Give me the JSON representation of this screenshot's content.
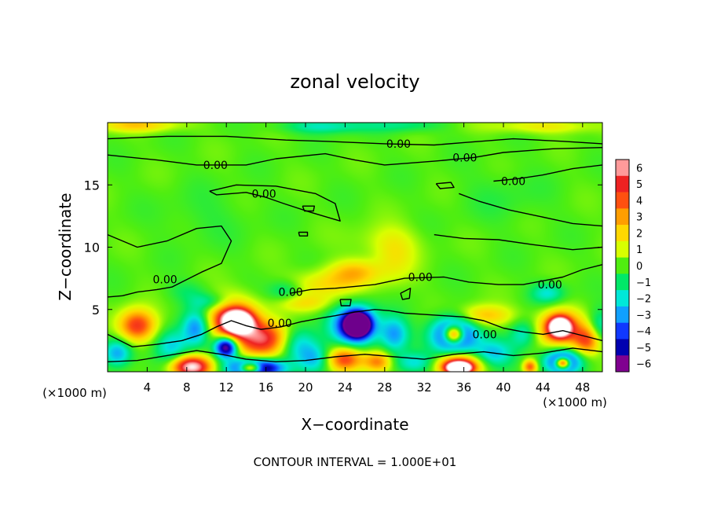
{
  "chart_data": {
    "type": "heatmap",
    "title": "zonal velocity",
    "xlabel": "X−coordinate",
    "ylabel": "Z−coordinate",
    "x_unit_left": "(×1000 m)",
    "x_unit_right": "(×1000 m)",
    "xlim": [
      0,
      50
    ],
    "ylim": [
      0,
      20
    ],
    "x_ticks": [
      4,
      8,
      12,
      16,
      20,
      24,
      28,
      32,
      36,
      40,
      44,
      48
    ],
    "y_ticks": [
      5,
      10,
      15
    ],
    "colorbar": {
      "min": -6,
      "max": 6,
      "tick_values": [
        6,
        5,
        4,
        3,
        2,
        1,
        0,
        -1,
        -2,
        -3,
        -4,
        -5,
        -6
      ],
      "tick_labels": [
        "6",
        "5",
        "4",
        "3",
        "2",
        "1",
        "0",
        "−1",
        "−2",
        "−3",
        "−4",
        "−5",
        "−6"
      ],
      "colors": [
        "#ff9a9a",
        "#ee2222",
        "#ff5010",
        "#ff9e00",
        "#ffd800",
        "#d8ff00",
        "#50ee10",
        "#00e868",
        "#00e8d8",
        "#10a0ff",
        "#1038ff",
        "#0000b0",
        "#800090"
      ]
    },
    "contour_interval_label": "CONTOUR INTERVAL = 1.000E+01",
    "contour_labels": [
      {
        "text": "0.00",
        "x": 29.4,
        "y": 18.3
      },
      {
        "text": "0.00",
        "x": 10.9,
        "y": 16.6
      },
      {
        "text": "0.00",
        "x": 36.1,
        "y": 17.2
      },
      {
        "text": "0.00",
        "x": 41.0,
        "y": 15.3
      },
      {
        "text": "0.00",
        "x": 15.8,
        "y": 14.3
      },
      {
        "text": "0.00",
        "x": 5.8,
        "y": 7.4
      },
      {
        "text": "0.00",
        "x": 18.5,
        "y": 6.4
      },
      {
        "text": "0.00",
        "x": 31.6,
        "y": 7.6
      },
      {
        "text": "0.00",
        "x": 44.7,
        "y": 7.0
      },
      {
        "text": "0.00",
        "x": 17.4,
        "y": 3.9
      },
      {
        "text": "0.00",
        "x": 38.1,
        "y": 3.0
      }
    ],
    "field_blobs": [
      {
        "x": 3,
        "y": 3.7,
        "sx": 1.3,
        "sy": 0.9,
        "v": 4.8
      },
      {
        "x": 1,
        "y": 1.5,
        "sx": 1.0,
        "sy": 0.8,
        "v": -3
      },
      {
        "x": 6.5,
        "y": 2.0,
        "sx": 1.2,
        "sy": 1.0,
        "v": -2.5
      },
      {
        "x": 8.5,
        "y": 0.4,
        "sx": 1.4,
        "sy": 0.6,
        "v": 7
      },
      {
        "x": 9,
        "y": 3.5,
        "sx": 1.0,
        "sy": 1.0,
        "v": -3.5
      },
      {
        "x": 12.5,
        "y": 4.2,
        "sx": 1.8,
        "sy": 1.2,
        "v": 5
      },
      {
        "x": 13.2,
        "y": 4.0,
        "sx": 1.0,
        "sy": 0.6,
        "v": 8
      },
      {
        "x": 16,
        "y": 2.6,
        "sx": 2.0,
        "sy": 1.0,
        "v": 5.5
      },
      {
        "x": 12,
        "y": 2.0,
        "sx": 0.8,
        "sy": 0.6,
        "v": -7
      },
      {
        "x": 15,
        "y": 0.3,
        "sx": 1.8,
        "sy": 0.5,
        "v": -8
      },
      {
        "x": 14.5,
        "y": 0.3,
        "sx": 0.8,
        "sy": 0.3,
        "v": 8
      },
      {
        "x": 19,
        "y": 2.3,
        "sx": 1.5,
        "sy": 1.0,
        "v": -3
      },
      {
        "x": 21,
        "y": 1.0,
        "sx": 1.2,
        "sy": 0.8,
        "v": -2.5
      },
      {
        "x": 25,
        "y": 3.7,
        "sx": 1.6,
        "sy": 1.1,
        "v": -5.5
      },
      {
        "x": 25.3,
        "y": 3.8,
        "sx": 0.8,
        "sy": 0.6,
        "v": -8
      },
      {
        "x": 24,
        "y": 1.0,
        "sx": 1.3,
        "sy": 0.7,
        "v": 4.5
      },
      {
        "x": 27.3,
        "y": 0.8,
        "sx": 1.0,
        "sy": 0.6,
        "v": 3.5
      },
      {
        "x": 29,
        "y": 3.0,
        "sx": 1.0,
        "sy": 1.0,
        "v": -3
      },
      {
        "x": 31,
        "y": 0.7,
        "sx": 1.5,
        "sy": 0.6,
        "v": -2
      },
      {
        "x": 35,
        "y": 3.0,
        "sx": 1.5,
        "sy": 1.0,
        "v": -6
      },
      {
        "x": 35,
        "y": 3.0,
        "sx": 0.7,
        "sy": 0.5,
        "v": 8
      },
      {
        "x": 35.5,
        "y": 0.5,
        "sx": 1.5,
        "sy": 0.6,
        "v": 6
      },
      {
        "x": 35.5,
        "y": 0.3,
        "sx": 0.8,
        "sy": 0.3,
        "v": 8
      },
      {
        "x": 38,
        "y": 4.5,
        "sx": 2.0,
        "sy": 0.6,
        "v": 2.5
      },
      {
        "x": 39,
        "y": 1.5,
        "sx": 1.5,
        "sy": 0.8,
        "v": -2.5
      },
      {
        "x": 42,
        "y": 3.0,
        "sx": 1.0,
        "sy": 0.8,
        "v": -2
      },
      {
        "x": 42.7,
        "y": 0.4,
        "sx": 0.5,
        "sy": 0.4,
        "v": 4
      },
      {
        "x": 45.7,
        "y": 3.5,
        "sx": 1.5,
        "sy": 1.0,
        "v": 5
      },
      {
        "x": 45.7,
        "y": 3.6,
        "sx": 0.7,
        "sy": 0.5,
        "v": 8
      },
      {
        "x": 46,
        "y": 0.8,
        "sx": 1.3,
        "sy": 0.7,
        "v": -5
      },
      {
        "x": 46,
        "y": 0.7,
        "sx": 0.5,
        "sy": 0.3,
        "v": 8
      },
      {
        "x": 48.5,
        "y": 2.5,
        "sx": 1.0,
        "sy": 0.8,
        "v": 4
      },
      {
        "x": 49.7,
        "y": 3.5,
        "sx": 0.8,
        "sy": 1.0,
        "v": -2
      },
      {
        "x": 44.5,
        "y": 6.3,
        "sx": 1.2,
        "sy": 0.6,
        "v": -2
      },
      {
        "x": 22,
        "y": 7.0,
        "sx": 2.5,
        "sy": 0.8,
        "v": 1.8
      },
      {
        "x": 25,
        "y": 8.0,
        "sx": 1.8,
        "sy": 0.7,
        "v": 2.2
      },
      {
        "x": 29,
        "y": 9.0,
        "sx": 1.5,
        "sy": 1.5,
        "v": 1.3
      },
      {
        "x": 20,
        "y": 5.5,
        "sx": 2.0,
        "sy": 0.5,
        "v": 1.5
      },
      {
        "x": 18,
        "y": 6.5,
        "sx": 1.2,
        "sy": 0.6,
        "v": -1.5
      },
      {
        "x": 10.5,
        "y": 5.6,
        "sx": 1.5,
        "sy": 0.5,
        "v": -1.8
      },
      {
        "x": 8,
        "y": 6.5,
        "sx": 1.5,
        "sy": 0.6,
        "v": -0.8
      },
      {
        "x": 28,
        "y": 10.5,
        "sx": 2.5,
        "sy": 1.0,
        "v": 0.8
      },
      {
        "x": 22,
        "y": 19.7,
        "sx": 3.0,
        "sy": 0.4,
        "v": -1.8
      },
      {
        "x": 30,
        "y": 19.8,
        "sx": 2.5,
        "sy": 0.4,
        "v": -1.2
      },
      {
        "x": 3,
        "y": 19.8,
        "sx": 3.0,
        "sy": 0.4,
        "v": 2.2
      },
      {
        "x": 44,
        "y": 19.7,
        "sx": 4.0,
        "sy": 0.4,
        "v": 1.5
      },
      {
        "x": 40,
        "y": 14.0,
        "sx": 3.0,
        "sy": 1.5,
        "v": -0.4
      },
      {
        "x": 10,
        "y": 12.5,
        "sx": 3.0,
        "sy": 1.5,
        "v": -0.4
      }
    ],
    "contour_lines": [
      [
        [
          0,
          18.7
        ],
        [
          6,
          18.9
        ],
        [
          12,
          18.9
        ],
        [
          18,
          18.6
        ],
        [
          22,
          18.5
        ],
        [
          28,
          18.3
        ],
        [
          33,
          18.2
        ],
        [
          36,
          18.4
        ],
        [
          41,
          18.7
        ],
        [
          46,
          18.5
        ],
        [
          50,
          18.3
        ]
      ],
      [
        [
          0,
          17.4
        ],
        [
          5,
          17.0
        ],
        [
          9,
          16.6
        ],
        [
          14,
          16.6
        ],
        [
          17,
          17.1
        ],
        [
          22,
          17.5
        ],
        [
          25,
          17.0
        ],
        [
          28,
          16.6
        ],
        [
          33,
          16.9
        ],
        [
          37,
          17.2
        ],
        [
          40,
          17.6
        ],
        [
          45,
          17.9
        ],
        [
          50,
          18.0
        ]
      ],
      [
        [
          39,
          15.3
        ],
        [
          41.5,
          15.5
        ],
        [
          44,
          15.8
        ],
        [
          47,
          16.3
        ],
        [
          50,
          16.6
        ]
      ],
      [
        [
          10.3,
          14.5
        ],
        [
          13,
          15.0
        ],
        [
          17,
          14.9
        ],
        [
          21,
          14.3
        ],
        [
          23,
          13.5
        ],
        [
          23.5,
          12.1
        ],
        [
          20.5,
          12.8
        ],
        [
          17.8,
          13.5
        ],
        [
          16,
          14.0
        ],
        [
          14,
          14.4
        ],
        [
          11,
          14.2
        ],
        [
          10.3,
          14.5
        ]
      ],
      [
        [
          0,
          11.0
        ],
        [
          3,
          10.0
        ],
        [
          6,
          10.5
        ],
        [
          9,
          11.5
        ],
        [
          11.5,
          11.7
        ],
        [
          12.5,
          10.5
        ],
        [
          11.5,
          8.7
        ],
        [
          9.5,
          8.0
        ],
        [
          7.5,
          7.2
        ],
        [
          6.5,
          6.8
        ],
        [
          5,
          6.6
        ],
        [
          3,
          6.4
        ],
        [
          1.5,
          6.1
        ],
        [
          0,
          6.0
        ]
      ],
      [
        [
          35.5,
          14.3
        ],
        [
          37.5,
          13.7
        ],
        [
          40.5,
          13.0
        ],
        [
          43.5,
          12.5
        ],
        [
          47,
          11.9
        ],
        [
          50,
          11.7
        ]
      ],
      [
        [
          33,
          11.0
        ],
        [
          36,
          10.7
        ],
        [
          39.5,
          10.6
        ],
        [
          43,
          10.2
        ],
        [
          47,
          9.8
        ],
        [
          50,
          10.0
        ]
      ],
      [
        [
          18.5,
          6.3
        ],
        [
          20.5,
          6.6
        ],
        [
          23,
          6.7
        ],
        [
          27,
          7.0
        ],
        [
          30,
          7.5
        ],
        [
          34,
          7.6
        ],
        [
          36.5,
          7.2
        ],
        [
          39.5,
          7.0
        ],
        [
          42,
          7.0
        ],
        [
          44,
          7.3
        ],
        [
          46,
          7.6
        ],
        [
          48,
          8.2
        ],
        [
          50,
          8.6
        ]
      ],
      [
        [
          0,
          3.0
        ],
        [
          2.5,
          2.0
        ],
        [
          5,
          2.2
        ],
        [
          7.5,
          2.5
        ],
        [
          9.5,
          3.0
        ],
        [
          11,
          3.6
        ],
        [
          12.5,
          4.1
        ],
        [
          14,
          3.7
        ],
        [
          15.5,
          3.4
        ],
        [
          17.5,
          3.6
        ],
        [
          19.5,
          4.0
        ],
        [
          21.5,
          4.3
        ],
        [
          23,
          4.5
        ],
        [
          25,
          4.8
        ],
        [
          27,
          5.0
        ],
        [
          28.5,
          4.9
        ]
      ],
      [
        [
          28.5,
          4.9
        ],
        [
          30,
          4.7
        ],
        [
          32,
          4.6
        ],
        [
          34,
          4.5
        ],
        [
          36,
          4.4
        ],
        [
          38,
          4.1
        ],
        [
          40,
          3.5
        ],
        [
          42,
          3.2
        ],
        [
          44,
          3.0
        ],
        [
          46,
          3.3
        ],
        [
          48,
          2.9
        ],
        [
          50,
          2.5
        ]
      ],
      [
        [
          0,
          0.8
        ],
        [
          3,
          0.9
        ],
        [
          6,
          1.3
        ],
        [
          9,
          1.7
        ],
        [
          11.5,
          1.4
        ],
        [
          14,
          1.0
        ],
        [
          17,
          0.8
        ],
        [
          20,
          0.9
        ],
        [
          23,
          1.2
        ],
        [
          26,
          1.4
        ],
        [
          29,
          1.2
        ],
        [
          32,
          1.0
        ],
        [
          35,
          1.4
        ],
        [
          38,
          1.6
        ],
        [
          41,
          1.3
        ],
        [
          44,
          1.5
        ],
        [
          47,
          1.9
        ],
        [
          50,
          1.6
        ]
      ],
      [
        [
          19.7,
          13.3
        ],
        [
          20.9,
          13.3
        ],
        [
          20.8,
          12.9
        ],
        [
          19.9,
          12.9
        ],
        [
          19.7,
          13.3
        ]
      ],
      [
        [
          33.2,
          15.1
        ],
        [
          34.7,
          15.2
        ],
        [
          35.0,
          14.8
        ],
        [
          33.6,
          14.7
        ],
        [
          33.2,
          15.1
        ]
      ],
      [
        [
          19.3,
          11.2
        ],
        [
          20.2,
          11.2
        ],
        [
          20.2,
          10.9
        ],
        [
          19.4,
          10.9
        ],
        [
          19.3,
          11.2
        ]
      ],
      [
        [
          29.6,
          6.3
        ],
        [
          30.6,
          6.7
        ],
        [
          30.5,
          5.9
        ],
        [
          29.8,
          5.8
        ],
        [
          29.6,
          6.3
        ]
      ],
      [
        [
          23.5,
          5.8
        ],
        [
          24.6,
          5.8
        ],
        [
          24.5,
          5.3
        ],
        [
          23.6,
          5.3
        ],
        [
          23.5,
          5.8
        ]
      ]
    ]
  }
}
